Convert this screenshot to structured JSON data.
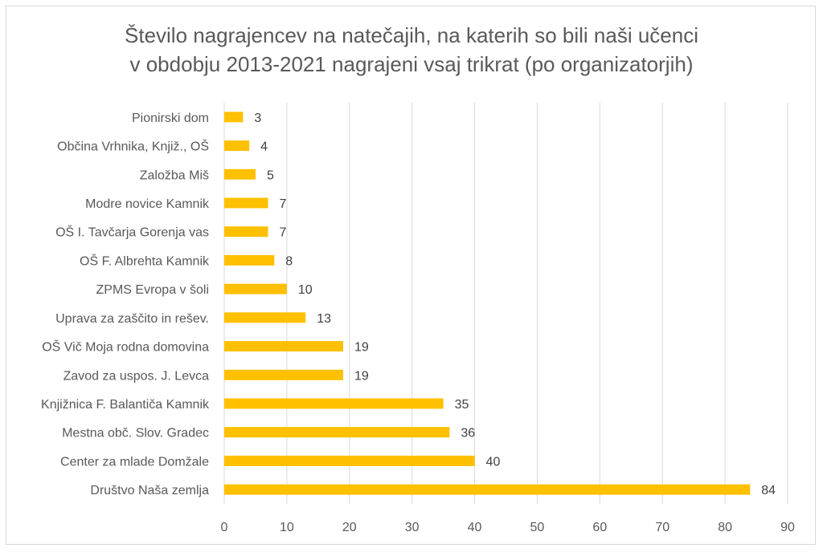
{
  "chart_data": {
    "type": "bar",
    "orientation": "horizontal",
    "title_lines": [
      "Število nagrajencev na natečajih, na katerih so bili naši učenci",
      "v obdobju 2013-2021 nagrajeni vsaj trikrat (po organizatorjih)"
    ],
    "categories": [
      "Pionirski dom",
      "Občina Vrhnika, Knjiž., OŠ",
      "Založba Miš",
      "Modre novice Kamnik",
      "OŠ I. Tavčarja Gorenja vas",
      "OŠ F. Albrehta Kamnik",
      "ZPMS Evropa v šoli",
      "Uprava za zaščito in rešev.",
      "OŠ Vič Moja rodna domovina",
      "Zavod za uspos. J. Levca",
      "Knjižnica F. Balantiča Kamnik",
      "Mestna obč. Slov. Gradec",
      "Center za mlade Domžale",
      "Društvo Naša zemlja"
    ],
    "values": [
      3,
      4,
      5,
      7,
      7,
      8,
      10,
      13,
      19,
      19,
      35,
      36,
      40,
      84
    ],
    "xlim": [
      0,
      90
    ],
    "x_ticks": [
      "0",
      "10",
      "20",
      "30",
      "40",
      "50",
      "60",
      "70",
      "80",
      "90"
    ],
    "grid": "vertical",
    "data_labels": true,
    "colors": {
      "bar": "#FFC000",
      "grid": "#D9D9D9",
      "text": "#595959",
      "label": "#404040"
    }
  }
}
